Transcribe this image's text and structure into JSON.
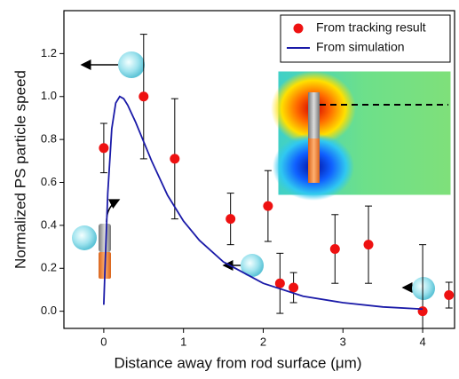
{
  "chart_data": {
    "type": "scatter",
    "xlabel": "Distance away from rod surface (μm)",
    "ylabel": "Normalized PS particle speed",
    "xlim": [
      -0.5,
      4.4
    ],
    "ylim": [
      -0.08,
      1.4
    ],
    "xticks": [
      0,
      1,
      2,
      3,
      4
    ],
    "yticks": [
      {
        "value": 0.0,
        "label": "0.0"
      },
      0.2,
      0.4,
      0.6,
      0.8,
      {
        "value": 1.0,
        "label": "1.0"
      },
      1.2
    ],
    "legend": "upper right",
    "series": [
      {
        "name": "From tracking result",
        "type": "scatter",
        "color": "#ee1111",
        "x": [
          0,
          0.5,
          0.89,
          1.59,
          2.06,
          2.21,
          2.38,
          2.9,
          3.32,
          4.0,
          4.33
        ],
        "values": [
          0.76,
          1.0,
          0.71,
          0.43,
          0.49,
          0.13,
          0.11,
          0.29,
          0.31,
          0.0,
          0.075
        ],
        "errors": [
          0.115,
          0.29,
          0.28,
          0.12,
          0.165,
          0.14,
          0.07,
          0.16,
          0.18,
          0.31,
          0.06
        ]
      },
      {
        "name": "From simulation",
        "type": "line",
        "color": "#1a1aa8",
        "x": [
          0,
          0.02,
          0.05,
          0.1,
          0.15,
          0.2,
          0.25,
          0.3,
          0.4,
          0.5,
          0.6,
          0.8,
          1.0,
          1.2,
          1.5,
          2.0,
          2.5,
          3.0,
          3.5,
          4.0
        ],
        "values": [
          0.03,
          0.25,
          0.55,
          0.85,
          0.97,
          1.0,
          0.99,
          0.96,
          0.88,
          0.79,
          0.7,
          0.54,
          0.42,
          0.33,
          0.23,
          0.13,
          0.07,
          0.04,
          0.02,
          0.01
        ]
      }
    ]
  }
}
